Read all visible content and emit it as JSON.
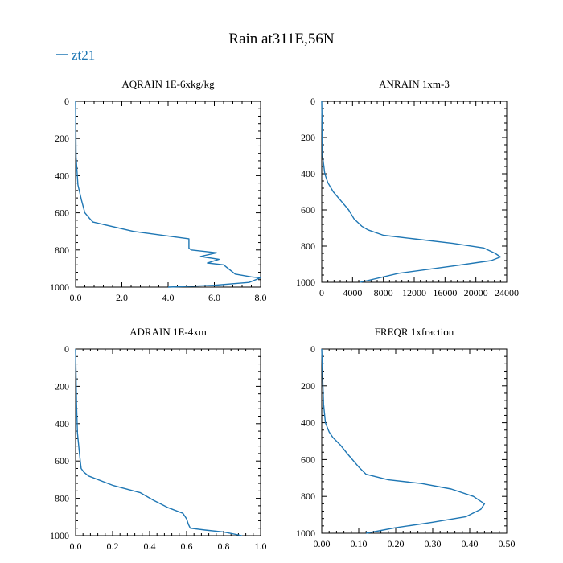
{
  "figure": {
    "title": "Rain at311E,56N",
    "legend": {
      "label": "zt21",
      "color": "#1f77b4",
      "placement": "top-left"
    }
  },
  "chart_data": [
    {
      "type": "line",
      "title": "AQRAIN  1E-6xkg/kg",
      "xlabel": "",
      "ylabel": "",
      "xlim": [
        0,
        8
      ],
      "ylim": [
        1000,
        0
      ],
      "y_inverted": true,
      "xticks": [
        0,
        2,
        4,
        6,
        8
      ],
      "xtick_labels": [
        "0.0",
        "2.0",
        "4.0",
        "6.0",
        "8.0"
      ],
      "yticks": [
        0,
        200,
        400,
        600,
        800,
        1000
      ],
      "ytick_labels": [
        "0",
        "200",
        "400",
        "600",
        "800",
        "1000"
      ],
      "series": [
        {
          "name": "zt21",
          "x": [
            0,
            0.02,
            0.1,
            0.25,
            0.4,
            0.6,
            0.75,
            2.5,
            4.9,
            4.9,
            5.0,
            6.1,
            5.4,
            6.2,
            5.7,
            6.4,
            6.9,
            7.6,
            8.0,
            7.5,
            6.0,
            4.0
          ],
          "y": [
            0,
            300,
            450,
            530,
            600,
            630,
            650,
            700,
            740,
            790,
            800,
            815,
            835,
            850,
            870,
            880,
            930,
            945,
            950,
            975,
            990,
            1000
          ]
        }
      ],
      "grid": false
    },
    {
      "type": "line",
      "title": "ANRAIN  1xm-3",
      "xlabel": "",
      "ylabel": "",
      "xlim": [
        0,
        24000
      ],
      "ylim": [
        1000,
        0
      ],
      "y_inverted": true,
      "xticks": [
        0,
        4000,
        8000,
        12000,
        16000,
        20000,
        24000
      ],
      "xtick_labels": [
        "0",
        "4000",
        "8000",
        "12000",
        "16000",
        "20000",
        "24000"
      ],
      "yticks": [
        0,
        200,
        400,
        600,
        800,
        1000
      ],
      "ytick_labels": [
        "0",
        "200",
        "400",
        "600",
        "800",
        "1000"
      ],
      "series": [
        {
          "name": "zt21",
          "x": [
            0,
            100,
            400,
            800,
            1500,
            2500,
            3500,
            4200,
            5200,
            6000,
            8000,
            12000,
            17000,
            21000,
            22500,
            23200,
            22000,
            17000,
            10000,
            5000
          ],
          "y": [
            0,
            300,
            400,
            450,
            500,
            550,
            600,
            650,
            690,
            710,
            740,
            760,
            785,
            810,
            840,
            860,
            880,
            910,
            950,
            1000
          ]
        }
      ],
      "grid": false
    },
    {
      "type": "line",
      "title": "ADRAIN  1E-4xm",
      "xlabel": "",
      "ylabel": "",
      "xlim": [
        0,
        1.0
      ],
      "ylim": [
        1000,
        0
      ],
      "y_inverted": true,
      "xticks": [
        0,
        0.2,
        0.4,
        0.6,
        0.8,
        1.0
      ],
      "xtick_labels": [
        "0.0",
        "0.2",
        "0.4",
        "0.6",
        "0.8",
        "1.0"
      ],
      "yticks": [
        0,
        200,
        400,
        600,
        800,
        1000
      ],
      "ytick_labels": [
        "0",
        "200",
        "400",
        "600",
        "800",
        "1000"
      ],
      "series": [
        {
          "name": "zt21",
          "x": [
            0,
            0.005,
            0.01,
            0.02,
            0.025,
            0.03,
            0.045,
            0.07,
            0.2,
            0.35,
            0.42,
            0.5,
            0.58,
            0.6,
            0.61,
            0.62,
            0.7,
            0.8,
            0.9
          ],
          "y": [
            0,
            300,
            450,
            550,
            600,
            640,
            660,
            680,
            730,
            770,
            810,
            850,
            880,
            910,
            940,
            960,
            970,
            980,
            1000
          ]
        }
      ],
      "grid": false
    },
    {
      "type": "line",
      "title": "FREQR  1xfraction",
      "xlabel": "",
      "ylabel": "",
      "xlim": [
        0,
        0.5
      ],
      "ylim": [
        1000,
        0
      ],
      "y_inverted": true,
      "xticks": [
        0,
        0.1,
        0.2,
        0.3,
        0.4,
        0.5
      ],
      "xtick_labels": [
        "0.00",
        "0.10",
        "0.20",
        "0.30",
        "0.40",
        "0.50"
      ],
      "yticks": [
        0,
        200,
        400,
        600,
        800,
        1000
      ],
      "ytick_labels": [
        "0",
        "200",
        "400",
        "600",
        "800",
        "1000"
      ],
      "series": [
        {
          "name": "zt21",
          "x": [
            0,
            0.005,
            0.01,
            0.02,
            0.03,
            0.05,
            0.07,
            0.1,
            0.12,
            0.18,
            0.27,
            0.35,
            0.41,
            0.44,
            0.43,
            0.39,
            0.3,
            0.2,
            0.12
          ],
          "y": [
            0,
            300,
            400,
            450,
            480,
            520,
            570,
            640,
            680,
            710,
            730,
            760,
            800,
            840,
            870,
            910,
            940,
            970,
            1000
          ]
        }
      ],
      "grid": false
    }
  ]
}
